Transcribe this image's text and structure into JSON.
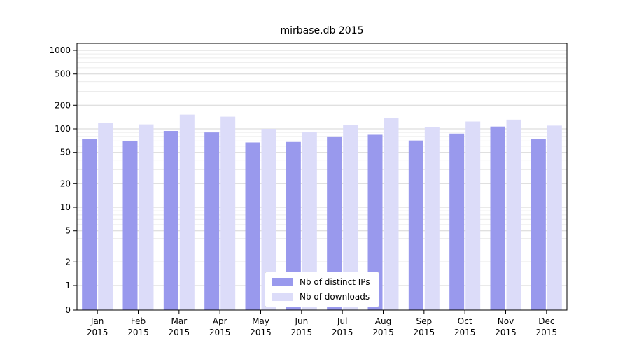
{
  "chart_data": {
    "type": "bar",
    "title": "mirbase.db 2015",
    "categories": [
      "Jan",
      "Feb",
      "Mar",
      "Apr",
      "May",
      "Jun",
      "Jul",
      "Aug",
      "Sep",
      "Oct",
      "Nov",
      "Dec"
    ],
    "year_label": "2015",
    "yscale": "log",
    "ylim": [
      0,
      1000
    ],
    "yticks": [
      0,
      1,
      2,
      5,
      10,
      20,
      50,
      100,
      200,
      500,
      1000
    ],
    "grid": true,
    "legend_position": "lower center",
    "series": [
      {
        "name": "Nb of distinct IPs",
        "color": "#9999ed",
        "values": [
          74,
          70,
          94,
          90,
          67,
          68,
          80,
          84,
          71,
          87,
          107,
          74
        ]
      },
      {
        "name": "Nb of downloads",
        "color": "#dcdcf9",
        "values": [
          120,
          114,
          152,
          143,
          100,
          91,
          112,
          137,
          105,
          124,
          131,
          110
        ]
      }
    ]
  }
}
